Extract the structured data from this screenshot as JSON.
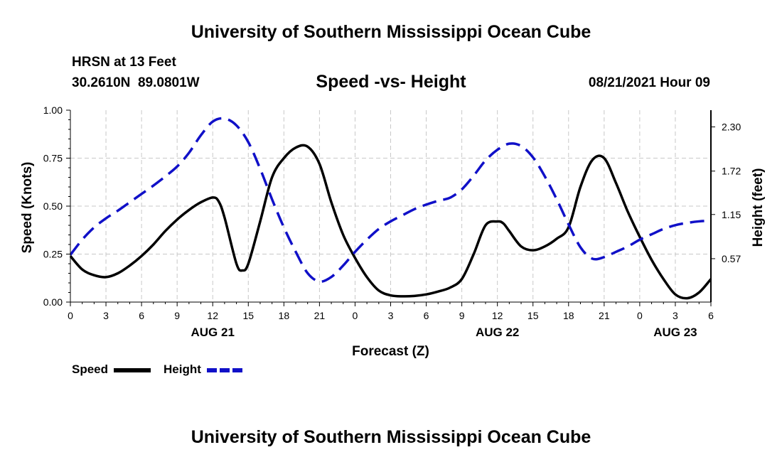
{
  "header": {
    "title": "University of Southern Mississippi Ocean Cube",
    "station": "HRSN at 13 Feet",
    "coords": "30.2610N  89.0801W",
    "chart_title": "Speed -vs- Height",
    "datetime": "08/21/2021 Hour 09"
  },
  "footer": {
    "title": "University of Southern Mississippi Ocean Cube"
  },
  "colors": {
    "speed": "#000000",
    "height": "#1010c8",
    "grid": "#c8c8c8"
  },
  "chart_data": {
    "type": "line",
    "title": "Speed -vs- Height",
    "xlabel": "Forecast (Z)",
    "ylabel": "Speed (Knots)",
    "y2label": "Height (feet)",
    "xlim": [
      0,
      54
    ],
    "ylim": [
      0,
      1
    ],
    "y2lim": [
      0,
      2.52
    ],
    "x_ticks": [
      0,
      3,
      6,
      9,
      12,
      15,
      18,
      21,
      24,
      27,
      30,
      33,
      36,
      39,
      42,
      45,
      48,
      51,
      54
    ],
    "x_tick_labels": [
      "0",
      "3",
      "6",
      "9",
      "12",
      "15",
      "18",
      "21",
      "0",
      "3",
      "6",
      "9",
      "12",
      "15",
      "18",
      "21",
      "0",
      "3",
      "6"
    ],
    "y_ticks": [
      0,
      0.25,
      0.5,
      0.75,
      1.0
    ],
    "y_tick_labels": [
      "0.00",
      "0.25",
      "0.50",
      "0.75",
      "1.00"
    ],
    "y2_ticks": [
      0.57,
      1.15,
      1.72,
      2.3
    ],
    "y2_tick_labels": [
      "0.57",
      "1.15",
      "1.72",
      "2.30"
    ],
    "date_labels": [
      {
        "x": 12,
        "label": "AUG 21"
      },
      {
        "x": 36,
        "label": "AUG 22"
      },
      {
        "x": 51,
        "label": "AUG 23"
      }
    ],
    "grid": true,
    "legend_position": "bottom-left",
    "series": [
      {
        "name": "Speed",
        "axis": "left",
        "style": "solid",
        "x": [
          0,
          1,
          2,
          3,
          4,
          5,
          6,
          7,
          8,
          9,
          10,
          11,
          12,
          12.5,
          13,
          14,
          14.5,
          15,
          16,
          17,
          18,
          19,
          20,
          21,
          22,
          23,
          24,
          25,
          26,
          27,
          28,
          29,
          30,
          31,
          32,
          33,
          34,
          35,
          36,
          36.5,
          37,
          38,
          39,
          40,
          41,
          42,
          43,
          44,
          45,
          46,
          47,
          48,
          49,
          50,
          51,
          52,
          53,
          54
        ],
        "values": [
          0.24,
          0.17,
          0.14,
          0.13,
          0.15,
          0.19,
          0.24,
          0.3,
          0.37,
          0.43,
          0.48,
          0.52,
          0.545,
          0.525,
          0.44,
          0.2,
          0.165,
          0.2,
          0.42,
          0.65,
          0.75,
          0.805,
          0.81,
          0.72,
          0.52,
          0.35,
          0.23,
          0.13,
          0.06,
          0.035,
          0.03,
          0.032,
          0.04,
          0.055,
          0.075,
          0.12,
          0.25,
          0.4,
          0.42,
          0.41,
          0.37,
          0.29,
          0.27,
          0.29,
          0.33,
          0.39,
          0.6,
          0.74,
          0.75,
          0.62,
          0.47,
          0.34,
          0.22,
          0.12,
          0.04,
          0.02,
          0.05,
          0.12
        ]
      },
      {
        "name": "Height",
        "axis": "right",
        "style": "dashed",
        "x": [
          0,
          1,
          2,
          3,
          4,
          5,
          6,
          7,
          8,
          9,
          10,
          11,
          12,
          13,
          14,
          15,
          16,
          17,
          18,
          19,
          20,
          21,
          22,
          23,
          24,
          25,
          26,
          27,
          28,
          29,
          30,
          31,
          32,
          33,
          34,
          35,
          36,
          37,
          38,
          39,
          40,
          41,
          42,
          43,
          44,
          45,
          46,
          47,
          48,
          49,
          50,
          51,
          52,
          53,
          54
        ],
        "values": [
          0.62,
          0.82,
          0.98,
          1.1,
          1.2,
          1.31,
          1.42,
          1.53,
          1.65,
          1.78,
          1.96,
          2.19,
          2.37,
          2.41,
          2.32,
          2.1,
          1.75,
          1.35,
          0.98,
          0.66,
          0.38,
          0.27,
          0.33,
          0.48,
          0.66,
          0.82,
          0.96,
          1.06,
          1.14,
          1.22,
          1.28,
          1.33,
          1.37,
          1.48,
          1.66,
          1.86,
          2.0,
          2.08,
          2.05,
          1.9,
          1.65,
          1.35,
          1.02,
          0.72,
          0.57,
          0.59,
          0.66,
          0.73,
          0.82,
          0.89,
          0.96,
          1.01,
          1.04,
          1.06,
          1.07
        ]
      }
    ]
  }
}
